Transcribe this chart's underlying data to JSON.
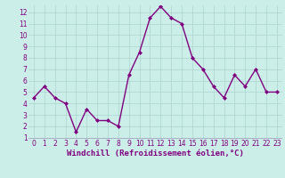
{
  "x": [
    0,
    1,
    2,
    3,
    4,
    5,
    6,
    7,
    8,
    9,
    10,
    11,
    12,
    13,
    14,
    15,
    16,
    17,
    18,
    19,
    20,
    21,
    22,
    23
  ],
  "y": [
    4.5,
    5.5,
    4.5,
    4.0,
    1.5,
    3.5,
    2.5,
    2.5,
    2.0,
    6.5,
    8.5,
    11.5,
    12.5,
    11.5,
    11.0,
    8.0,
    7.0,
    5.5,
    4.5,
    6.5,
    5.5,
    7.0,
    5.0,
    5.0
  ],
  "line_color": "#800080",
  "marker": "D",
  "marker_size": 2.0,
  "line_width": 1.0,
  "bg_color": "#cceee8",
  "grid_color": "#aad4ce",
  "xlabel": "Windchill (Refroidissement éolien,°C)",
  "xlabel_fontsize": 6.5,
  "tick_color": "#800080",
  "tick_fontsize": 5.5,
  "ylim": [
    1,
    12.5
  ],
  "xlim": [
    -0.5,
    23.5
  ],
  "yticks": [
    1,
    2,
    3,
    4,
    5,
    6,
    7,
    8,
    9,
    10,
    11,
    12
  ],
  "xticks": [
    0,
    1,
    2,
    3,
    4,
    5,
    6,
    7,
    8,
    9,
    10,
    11,
    12,
    13,
    14,
    15,
    16,
    17,
    18,
    19,
    20,
    21,
    22,
    23
  ]
}
